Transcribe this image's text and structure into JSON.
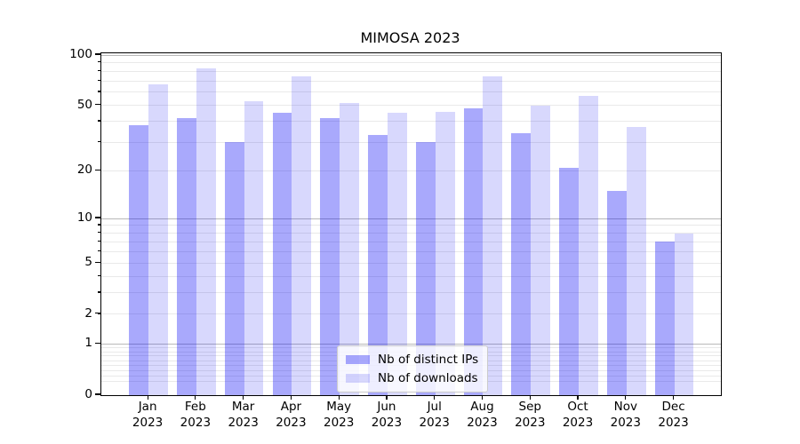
{
  "chart_data": {
    "type": "bar",
    "title": "MIMOSA 2023",
    "categories": [
      "Jan 2023",
      "Feb 2023",
      "Mar 2023",
      "Apr 2023",
      "May 2023",
      "Jun 2023",
      "Jul 2023",
      "Aug 2023",
      "Sep 2023",
      "Oct 2023",
      "Nov 2023",
      "Dec 2023"
    ],
    "x_tick_months": [
      "Jan",
      "Feb",
      "Mar",
      "Apr",
      "May",
      "Jun",
      "Jul",
      "Aug",
      "Sep",
      "Oct",
      "Nov",
      "Dec"
    ],
    "x_tick_year": "2023",
    "series": [
      {
        "name": "Nb of distinct IPs",
        "values": [
          38,
          42,
          30,
          45,
          42,
          33,
          30,
          48,
          34,
          21,
          15,
          7
        ],
        "color": "rgba(10,10,245,0.35)"
      },
      {
        "name": "Nb of downloads",
        "values": [
          67,
          83,
          53,
          75,
          52,
          45,
          46,
          75,
          50,
          57,
          37,
          8
        ],
        "color": "rgba(10,10,245,0.16)"
      }
    ],
    "yticks": [
      0,
      1,
      2,
      5,
      10,
      20,
      50,
      100
    ],
    "yscale": "log1p",
    "ylim": [
      0,
      102
    ],
    "grid": true,
    "legend_position": "lower center"
  },
  "colors": {
    "background": "#ffffff",
    "spine": "#000000",
    "grid_major": "#b9b9b9",
    "grid_minor": "#e9e9e9",
    "legend_bg": "rgba(255,255,255,0.8)",
    "legend_border": "#cccccc",
    "text": "#000000"
  }
}
